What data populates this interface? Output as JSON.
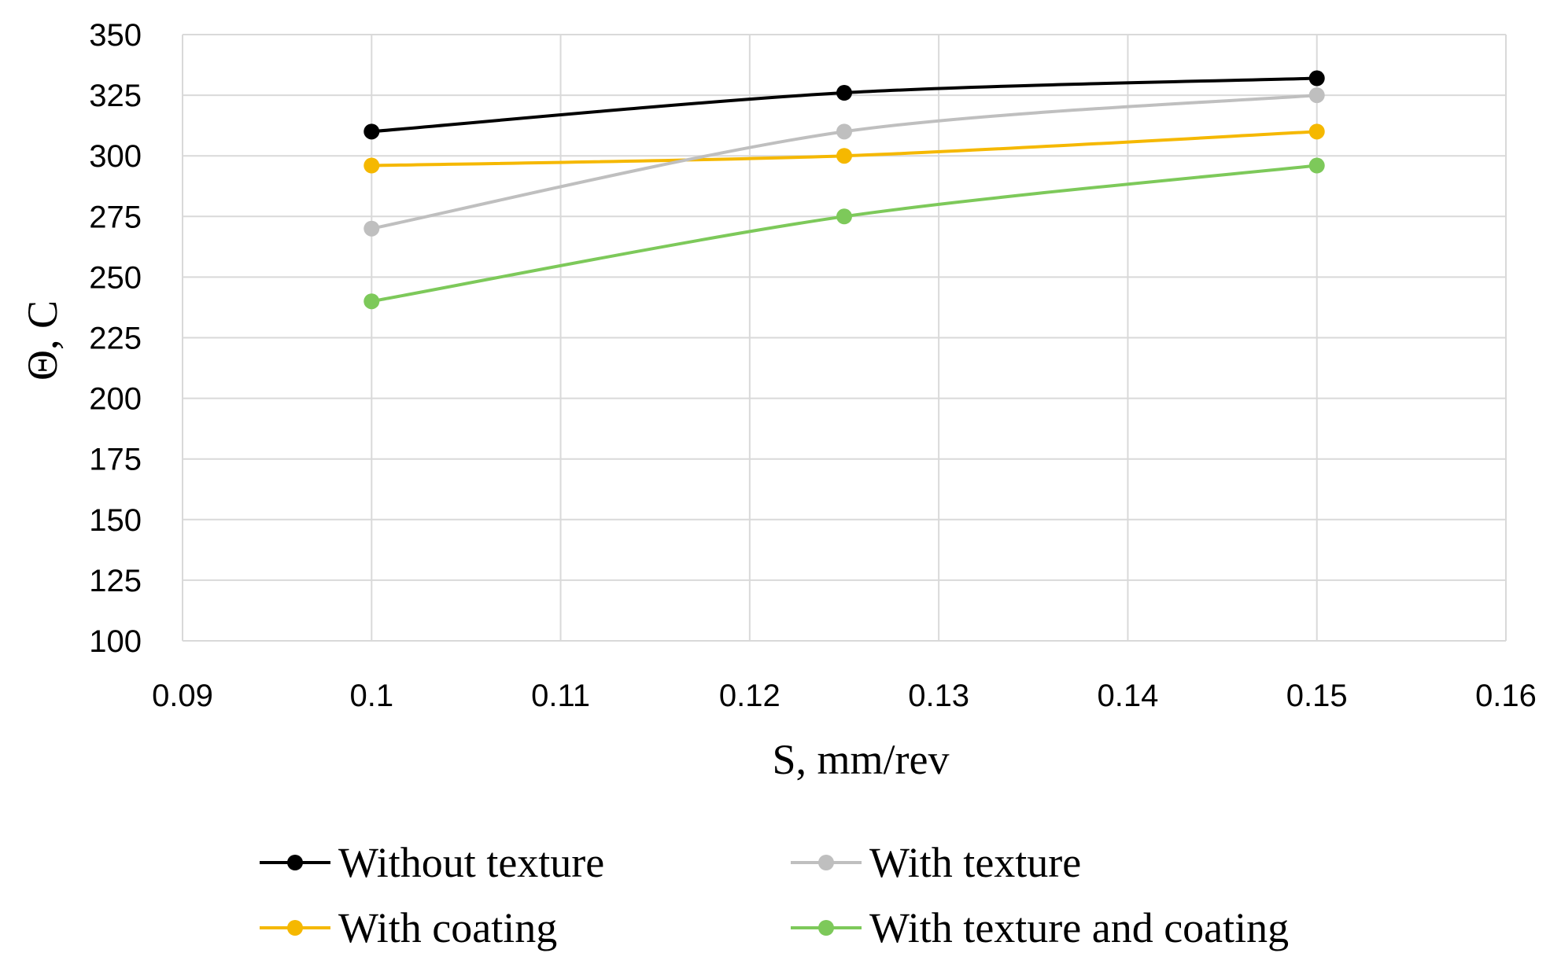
{
  "chart_data": {
    "type": "line",
    "xlabel": "S, mm/rev",
    "ylabel": "Θ, C",
    "xlim": [
      0.09,
      0.16
    ],
    "ylim": [
      100,
      350
    ],
    "x_ticks": [
      "0.09",
      "0.1",
      "0.11",
      "0.12",
      "0.13",
      "0.14",
      "0.15",
      "0.16"
    ],
    "y_ticks": [
      "100",
      "125",
      "150",
      "175",
      "200",
      "225",
      "250",
      "275",
      "300",
      "325",
      "350"
    ],
    "grid": true,
    "smooth": true,
    "legend_position": "bottom",
    "x": [
      0.1,
      0.125,
      0.15
    ],
    "series": [
      {
        "name": "Without texture",
        "values": [
          310,
          326,
          332
        ],
        "color": "#000000"
      },
      {
        "name": "With texture",
        "values": [
          270,
          310,
          325
        ],
        "color": "#bfbfbf"
      },
      {
        "name": "With coating",
        "values": [
          296,
          300,
          310
        ],
        "color": "#f5b800"
      },
      {
        "name": "With texture and coating",
        "values": [
          240,
          275,
          296
        ],
        "color": "#7dc95a"
      }
    ]
  }
}
